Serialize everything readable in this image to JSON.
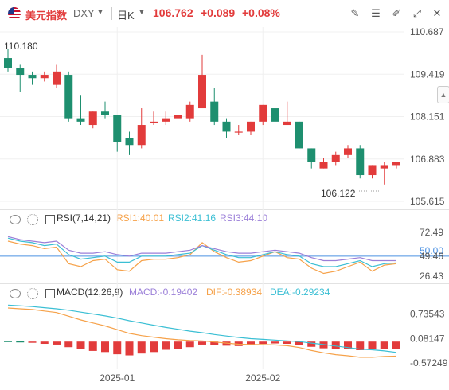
{
  "header": {
    "name": "美元指数",
    "code": "DXY",
    "period": "日K",
    "price": "106.762",
    "change": "+0.089",
    "change_pct": "+0.08%",
    "toolbar_icons": [
      "edit-icon",
      "settings-icon",
      "drawing-icon",
      "fullscreen-icon",
      "close-icon"
    ],
    "side_icon": "chevron-up-icon"
  },
  "colors": {
    "up": "#e23b3b",
    "down": "#1e8f6f",
    "rsi1": "#f6a24a",
    "rsi2": "#3bbfd4",
    "rsi3": "#9b7fd8",
    "ref": "#4a90e2"
  },
  "rsi_header": {
    "title": "RSI(7,14,21)",
    "rsi1": "RSI1:40.01",
    "rsi2": "RSI2:41.16",
    "rsi3": "RSI3:44.10"
  },
  "macd_header": {
    "title": "MACD(12,26,9)",
    "macd": "MACD:-0.19402",
    "dif": "DIF:-0.38934",
    "dea": "DEA:-0.29234"
  },
  "chart_data": [
    {
      "type": "candlestick",
      "y_ticks": [
        "110.687",
        "109.419",
        "108.151",
        "106.883",
        "105.615"
      ],
      "y_tick_values": [
        110.687,
        109.419,
        108.151,
        106.883,
        105.615
      ],
      "ylim": [
        105.615,
        110.687
      ],
      "high_label": "110.180",
      "low_label": "106.122",
      "x_labels": [
        "2025-01",
        "2025-02"
      ],
      "x_label_index": [
        9,
        21
      ],
      "candles": [
        {
          "o": 109.9,
          "h": 110.18,
          "l": 109.5,
          "c": 109.6
        },
        {
          "o": 109.6,
          "h": 109.7,
          "l": 108.9,
          "c": 109.4
        },
        {
          "o": 109.4,
          "h": 109.5,
          "l": 109.1,
          "c": 109.3
        },
        {
          "o": 109.3,
          "h": 109.5,
          "l": 109.2,
          "c": 109.4
        },
        {
          "o": 109.1,
          "h": 109.7,
          "l": 109.0,
          "c": 109.5
        },
        {
          "o": 109.4,
          "h": 109.5,
          "l": 108.0,
          "c": 108.1
        },
        {
          "o": 108.1,
          "h": 108.8,
          "l": 107.9,
          "c": 108.0
        },
        {
          "o": 107.9,
          "h": 108.3,
          "l": 107.8,
          "c": 108.3
        },
        {
          "o": 108.3,
          "h": 108.6,
          "l": 108.1,
          "c": 108.2
        },
        {
          "o": 108.2,
          "h": 108.2,
          "l": 107.1,
          "c": 107.4
        },
        {
          "o": 107.5,
          "h": 107.7,
          "l": 107.0,
          "c": 107.3
        },
        {
          "o": 107.3,
          "h": 108.4,
          "l": 107.2,
          "c": 107.9
        },
        {
          "o": 108.0,
          "h": 108.3,
          "l": 107.9,
          "c": 108.0
        },
        {
          "o": 108.0,
          "h": 108.3,
          "l": 107.9,
          "c": 108.1
        },
        {
          "o": 108.1,
          "h": 108.5,
          "l": 107.8,
          "c": 108.2
        },
        {
          "o": 108.1,
          "h": 108.6,
          "l": 108.0,
          "c": 108.5
        },
        {
          "o": 108.4,
          "h": 110.0,
          "l": 108.4,
          "c": 109.4
        },
        {
          "o": 108.6,
          "h": 109.0,
          "l": 107.9,
          "c": 108.0
        },
        {
          "o": 108.0,
          "h": 108.1,
          "l": 107.5,
          "c": 107.7
        },
        {
          "o": 107.7,
          "h": 107.9,
          "l": 107.6,
          "c": 107.7
        },
        {
          "o": 107.7,
          "h": 108.0,
          "l": 107.6,
          "c": 108.0
        },
        {
          "o": 108.0,
          "h": 108.5,
          "l": 107.9,
          "c": 108.5
        },
        {
          "o": 108.4,
          "h": 108.4,
          "l": 107.9,
          "c": 108.0
        },
        {
          "o": 107.9,
          "h": 108.6,
          "l": 107.9,
          "c": 108.0
        },
        {
          "o": 108.0,
          "h": 108.0,
          "l": 107.2,
          "c": 107.2
        },
        {
          "o": 107.2,
          "h": 107.2,
          "l": 106.6,
          "c": 106.8
        },
        {
          "o": 106.6,
          "h": 106.9,
          "l": 106.6,
          "c": 106.8
        },
        {
          "o": 106.8,
          "h": 107.1,
          "l": 106.7,
          "c": 107.0
        },
        {
          "o": 107.0,
          "h": 107.3,
          "l": 106.9,
          "c": 107.2
        },
        {
          "o": 107.2,
          "h": 107.3,
          "l": 106.3,
          "c": 106.4
        },
        {
          "o": 106.4,
          "h": 106.7,
          "l": 106.3,
          "c": 106.7
        },
        {
          "o": 106.6,
          "h": 106.8,
          "l": 106.12,
          "c": 106.7
        },
        {
          "o": 106.7,
          "h": 106.8,
          "l": 106.6,
          "c": 106.8
        }
      ]
    },
    {
      "type": "line",
      "title": "RSI(7,14,21)",
      "y_ticks": [
        "72.49",
        "50.00",
        "49.46",
        "26.43"
      ],
      "y_tick_values": [
        72.49,
        50.0,
        49.46,
        26.43
      ],
      "ylim": [
        18,
        88
      ],
      "reference_line": 50,
      "series": [
        {
          "name": "RSI1",
          "values": [
            70,
            66,
            64,
            60,
            62,
            40,
            36,
            44,
            46,
            32,
            30,
            44,
            46,
            46,
            48,
            52,
            68,
            56,
            48,
            42,
            44,
            50,
            56,
            48,
            46,
            34,
            27,
            30,
            36,
            42,
            30,
            38,
            40
          ]
        },
        {
          "name": "RSI2",
          "values": [
            74,
            70,
            68,
            64,
            66,
            52,
            46,
            48,
            50,
            42,
            42,
            50,
            50,
            50,
            52,
            54,
            64,
            58,
            52,
            48,
            48,
            52,
            56,
            52,
            50,
            40,
            36,
            36,
            40,
            44,
            36,
            40,
            41
          ]
        },
        {
          "name": "RSI3",
          "values": [
            76,
            72,
            70,
            68,
            70,
            58,
            54,
            54,
            56,
            52,
            50,
            54,
            54,
            54,
            56,
            58,
            64,
            60,
            56,
            54,
            54,
            56,
            58,
            56,
            54,
            48,
            44,
            44,
            46,
            48,
            44,
            44,
            44
          ]
        }
      ]
    },
    {
      "type": "bar+line",
      "title": "MACD(12,26,9)",
      "y_ticks": [
        "0.73543",
        "0.08147",
        "-0.57249"
      ],
      "y_tick_values": [
        0.73543,
        0.08147,
        -0.57249
      ],
      "ylim": [
        -0.7,
        1.05
      ],
      "histogram": [
        0.02,
        0.01,
        -0.03,
        -0.06,
        -0.08,
        -0.15,
        -0.2,
        -0.25,
        -0.28,
        -0.34,
        -0.37,
        -0.32,
        -0.28,
        -0.22,
        -0.19,
        -0.15,
        -0.08,
        -0.09,
        -0.11,
        -0.12,
        -0.1,
        -0.06,
        -0.05,
        -0.06,
        -0.09,
        -0.14,
        -0.18,
        -0.2,
        -0.2,
        -0.23,
        -0.21,
        -0.2,
        -0.19
      ],
      "series": [
        {
          "name": "DIF",
          "values": [
            0.9,
            0.88,
            0.86,
            0.82,
            0.78,
            0.68,
            0.58,
            0.5,
            0.42,
            0.32,
            0.22,
            0.16,
            0.12,
            0.08,
            0.05,
            0.03,
            0.02,
            -0.01,
            -0.04,
            -0.07,
            -0.08,
            -0.08,
            -0.09,
            -0.11,
            -0.16,
            -0.24,
            -0.3,
            -0.35,
            -0.38,
            -0.42,
            -0.42,
            -0.4,
            -0.39
          ]
        },
        {
          "name": "DEA",
          "values": [
            0.98,
            0.96,
            0.94,
            0.91,
            0.88,
            0.84,
            0.79,
            0.74,
            0.69,
            0.63,
            0.56,
            0.5,
            0.44,
            0.38,
            0.33,
            0.28,
            0.24,
            0.19,
            0.15,
            0.11,
            0.08,
            0.06,
            0.04,
            0.02,
            0.0,
            -0.04,
            -0.08,
            -0.12,
            -0.16,
            -0.2,
            -0.22,
            -0.25,
            -0.29
          ]
        }
      ]
    }
  ]
}
